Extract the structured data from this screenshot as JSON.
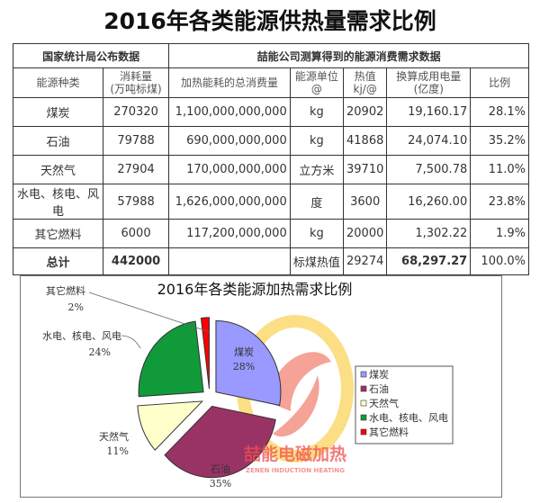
{
  "title": "2016年各类能源供热量需求比例",
  "table": {
    "group_headers": [
      "国家统计局公布数据",
      "喆能公司测算得到的能源消费需求数据"
    ],
    "columns": [
      "能源种类",
      "消耗量\n(万吨标煤)",
      "加热能耗的总消费量",
      "能源单位\n@",
      "热值\nkj/@",
      "换算成用电量\n(亿度)",
      "比例"
    ],
    "rows": [
      [
        "煤炭",
        "270320",
        "1,100,000,000,000",
        "kg",
        "20902",
        "19,160.17",
        "28.1%"
      ],
      [
        "石油",
        "79788",
        "690,000,000,000",
        "kg",
        "41868",
        "24,074.10",
        "35.2%"
      ],
      [
        "天然气",
        "27904",
        "170,000,000,000",
        "立方米",
        "39710",
        "7,500.78",
        "11.0%"
      ],
      [
        "水电、核电、风电",
        "57988",
        "1,626,000,000,000",
        "度",
        "3600",
        "16,260.00",
        "23.8%"
      ],
      [
        "其它燃料",
        "6000",
        "117,200,000,000",
        "kg",
        "20000",
        "1,302.22",
        "1.9%"
      ]
    ],
    "total": [
      "总计",
      "442000",
      "",
      "标煤热值",
      "29274",
      "68,297.27",
      "100.0%"
    ]
  },
  "chart_data": {
    "type": "pie",
    "title": "2016年各类能源加热需求比例",
    "categories": [
      "煤炭",
      "石油",
      "天然气",
      "水电、核电、风电",
      "其它燃料"
    ],
    "values": [
      28,
      35,
      11,
      24,
      2
    ],
    "value_labels": [
      "28%",
      "35%",
      "11%",
      "24%",
      "2%"
    ],
    "colors": [
      "#9999ff",
      "#993366",
      "#ffffcc",
      "#109a3a",
      "#ff0000"
    ],
    "exploded": true,
    "legend": "right"
  },
  "watermark": {
    "text": "喆能电磁加热",
    "subtext": "ZENEN INDUCTION HEATING"
  }
}
